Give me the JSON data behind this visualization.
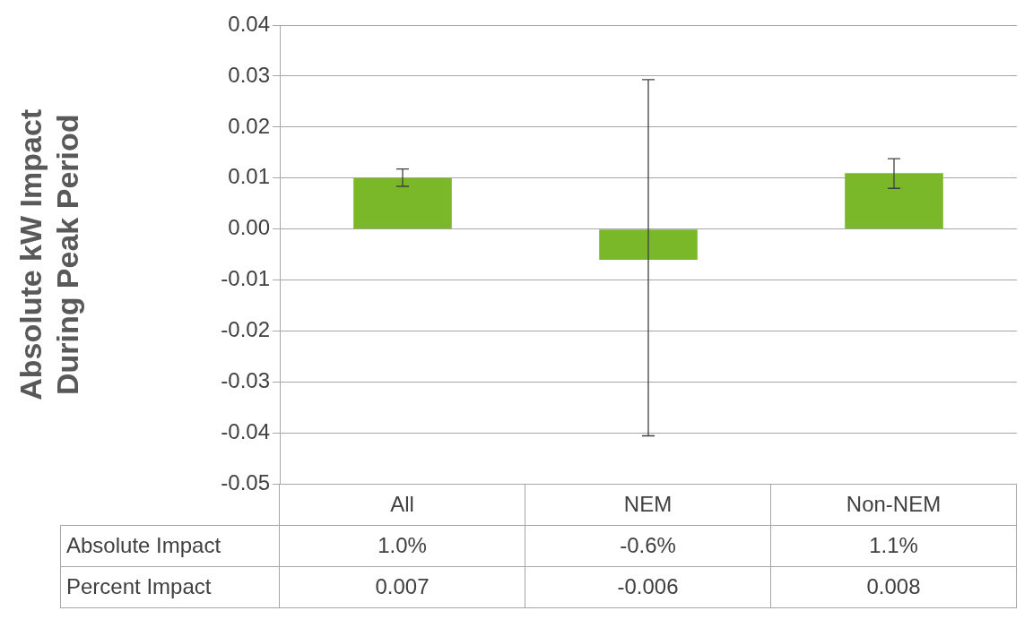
{
  "chart_data": {
    "type": "bar",
    "ylabel": "Absolute kW Impact During Peak Period",
    "categories": [
      "All",
      "NEM",
      "Non-NEM"
    ],
    "series": [
      {
        "name": "Absolute Impact",
        "color": "#7ab82a",
        "values": [
          0.01,
          -0.006,
          0.011
        ],
        "value_labels": [
          "1.0%",
          "-0.6%",
          "1.1%"
        ],
        "errors": [
          [
            0.0084,
            0.0118
          ],
          [
            -0.0405,
            0.0293
          ],
          [
            0.008,
            0.0138
          ]
        ]
      }
    ],
    "annotations": [
      "Percent Impact",
      "0.007",
      "-0.006",
      "0.008"
    ],
    "ylim": [
      -0.05,
      0.04
    ],
    "yticks": [
      -0.05,
      -0.04,
      -0.03,
      -0.02,
      -0.01,
      {
        "value": 0,
        "label": "0.00"
      },
      0.01,
      0.02,
      0.03,
      0.04
    ],
    "grid": "y"
  }
}
